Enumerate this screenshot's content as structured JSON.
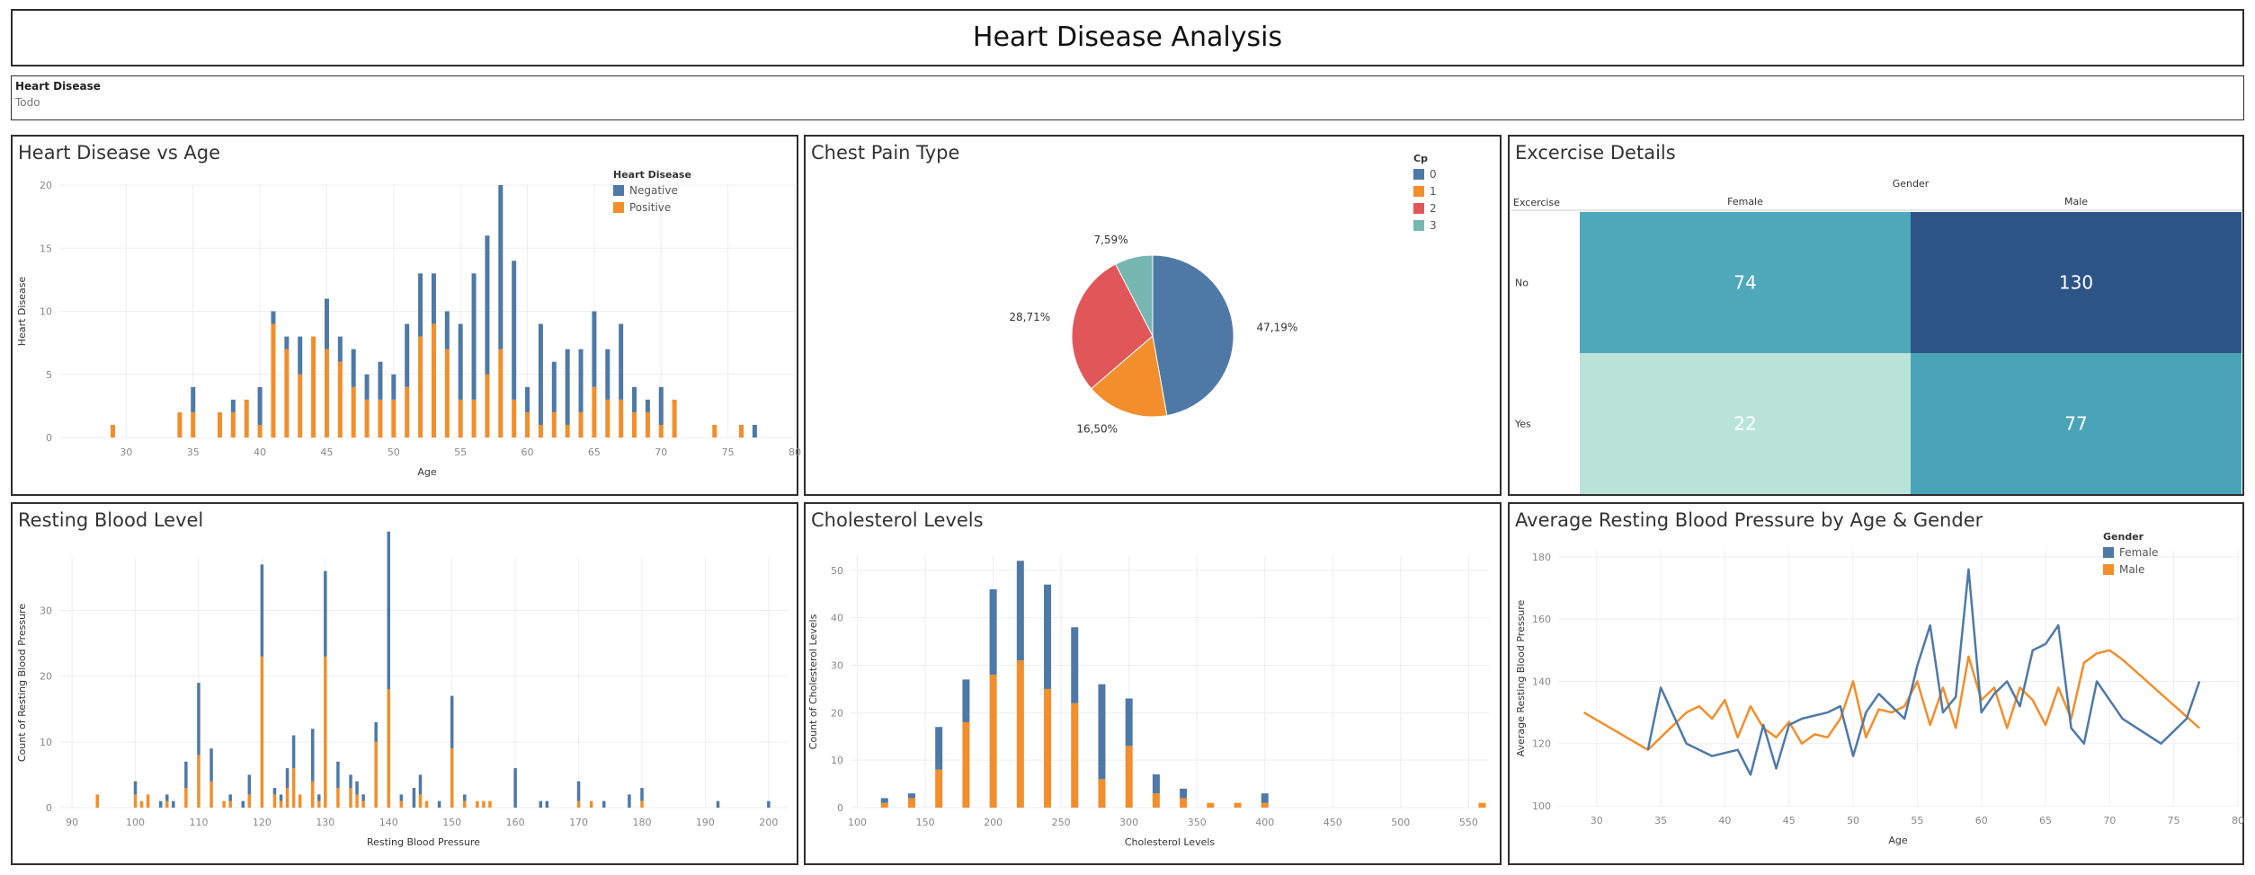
{
  "dashboard": {
    "title": "Heart Disease Analysis",
    "filter": {
      "label": "Heart Disease",
      "value": "Todo"
    }
  },
  "colors": {
    "negative": "#4e79a7",
    "positive": "#f28e2b",
    "cp2": "#e15759",
    "cp3": "#76b7b2",
    "grid": "#eeeeee",
    "axis": "#888888"
  },
  "chart_data": [
    {
      "id": "age",
      "type": "bar",
      "title": "Heart Disease vs Age",
      "xlabel": "Age",
      "ylabel": "Heart Disease",
      "xlim": [
        25,
        80
      ],
      "ylim": [
        0,
        20
      ],
      "xticks": [
        30,
        35,
        40,
        45,
        50,
        55,
        60,
        65,
        70,
        75,
        80
      ],
      "yticks": [
        0,
        5,
        10,
        15,
        20
      ],
      "legend": {
        "title": "Heart Disease",
        "position": "top-right",
        "items": [
          "Negative",
          "Positive"
        ]
      },
      "x": [
        29,
        34,
        35,
        37,
        38,
        39,
        40,
        41,
        42,
        43,
        44,
        45,
        46,
        47,
        48,
        49,
        50,
        51,
        52,
        53,
        54,
        55,
        56,
        57,
        58,
        59,
        60,
        61,
        62,
        63,
        64,
        65,
        66,
        67,
        68,
        69,
        70,
        71,
        74,
        76,
        77
      ],
      "series": [
        {
          "name": "Positive",
          "values": [
            1,
            2,
            2,
            2,
            2,
            3,
            1,
            9,
            7,
            5,
            8,
            7,
            6,
            4,
            3,
            3,
            3,
            4,
            8,
            9,
            7,
            3,
            3,
            5,
            7,
            3,
            2,
            1,
            2,
            1,
            2,
            4,
            3,
            3,
            2,
            2,
            1,
            3,
            1,
            1,
            0
          ]
        },
        {
          "name": "Negative",
          "values": [
            0,
            0,
            2,
            0,
            1,
            0,
            3,
            1,
            1,
            3,
            0,
            4,
            2,
            3,
            2,
            3,
            2,
            5,
            5,
            4,
            3,
            6,
            10,
            11,
            13,
            11,
            2,
            8,
            4,
            6,
            5,
            6,
            4,
            6,
            2,
            1,
            3,
            0,
            0,
            0,
            1
          ]
        }
      ]
    },
    {
      "id": "cp",
      "type": "pie",
      "title": "Chest Pain Type",
      "legend": {
        "title": "Cp",
        "position": "top-right",
        "items": [
          "0",
          "1",
          "2",
          "3"
        ]
      },
      "slices": [
        {
          "name": "0",
          "value": 47.19,
          "label": "47,19%"
        },
        {
          "name": "1",
          "value": 16.5,
          "label": "16,50%"
        },
        {
          "name": "2",
          "value": 28.71,
          "label": "28,71%"
        },
        {
          "name": "3",
          "value": 7.59,
          "label": "7,59%"
        }
      ]
    },
    {
      "id": "exercise",
      "type": "heatmap",
      "title": "Excercise Details",
      "column_header": "Gender",
      "row_header": "Excercise",
      "columns": [
        "Female",
        "Male"
      ],
      "rows": [
        "No",
        "Yes"
      ],
      "values": [
        [
          74,
          130
        ],
        [
          22,
          77
        ]
      ]
    },
    {
      "id": "bp",
      "type": "bar",
      "title": "Resting Blood Level",
      "xlabel": "Resting Blood Pressure",
      "ylabel": "Count of Resting Blood Pressure",
      "xlim": [
        88,
        203
      ],
      "ylim": [
        0,
        38
      ],
      "xticks": [
        90,
        100,
        110,
        120,
        130,
        140,
        150,
        160,
        170,
        180,
        190,
        200
      ],
      "yticks": [
        0,
        10,
        20,
        30
      ],
      "x": [
        94,
        100,
        101,
        102,
        104,
        105,
        106,
        108,
        110,
        112,
        114,
        115,
        117,
        118,
        120,
        122,
        123,
        124,
        125,
        126,
        128,
        129,
        130,
        132,
        134,
        135,
        136,
        138,
        140,
        142,
        144,
        145,
        146,
        148,
        150,
        152,
        154,
        155,
        156,
        160,
        164,
        165,
        170,
        172,
        174,
        178,
        180,
        192,
        200
      ],
      "series": [
        {
          "name": "Positive",
          "values": [
            2,
            2,
            1,
            2,
            0,
            1,
            0,
            3,
            8,
            4,
            1,
            1,
            0,
            2,
            23,
            2,
            1,
            3,
            6,
            2,
            4,
            1,
            23,
            3,
            3,
            2,
            1,
            10,
            18,
            1,
            0,
            2,
            1,
            0,
            9,
            1,
            1,
            1,
            1,
            0,
            0,
            0,
            1,
            1,
            0,
            0,
            1,
            0,
            0
          ]
        },
        {
          "name": "Negative",
          "values": [
            0,
            2,
            0,
            0,
            1,
            1,
            1,
            4,
            11,
            5,
            0,
            1,
            1,
            3,
            14,
            1,
            1,
            3,
            5,
            0,
            8,
            1,
            13,
            4,
            2,
            2,
            1,
            3,
            24,
            1,
            3,
            3,
            0,
            1,
            8,
            1,
            0,
            0,
            0,
            6,
            1,
            1,
            3,
            0,
            1,
            2,
            2,
            1,
            1
          ]
        }
      ]
    },
    {
      "id": "chol",
      "type": "bar",
      "title": "Cholesterol Levels",
      "xlabel": "Cholesterol Levels",
      "ylabel": "Count of Cholesterol Levels",
      "xlim": [
        95,
        565
      ],
      "ylim": [
        0,
        53
      ],
      "xticks": [
        100,
        150,
        200,
        250,
        300,
        350,
        400,
        450,
        500,
        550
      ],
      "yticks": [
        0,
        10,
        20,
        30,
        40,
        50
      ],
      "x": [
        120,
        140,
        160,
        180,
        200,
        220,
        240,
        260,
        280,
        300,
        320,
        340,
        360,
        380,
        400,
        560
      ],
      "series": [
        {
          "name": "Positive",
          "values": [
            1,
            2,
            8,
            18,
            28,
            31,
            25,
            22,
            6,
            13,
            3,
            2,
            1,
            1,
            1,
            1
          ]
        },
        {
          "name": "Negative",
          "values": [
            1,
            1,
            9,
            9,
            18,
            21,
            22,
            16,
            20,
            10,
            4,
            2,
            0,
            0,
            2,
            0
          ]
        }
      ]
    },
    {
      "id": "avgbp",
      "type": "line",
      "title": "Average Resting Blood Pressure by Age & Gender",
      "xlabel": "Age",
      "ylabel": "Average Resting Blood Pressure",
      "xlim": [
        27,
        80
      ],
      "ylim": [
        100,
        182
      ],
      "xticks": [
        30,
        35,
        40,
        45,
        50,
        55,
        60,
        65,
        70,
        75,
        80
      ],
      "yticks": [
        100,
        120,
        140,
        160,
        180
      ],
      "legend": {
        "title": "Gender",
        "position": "top-right",
        "items": [
          "Female",
          "Male"
        ]
      },
      "series": [
        {
          "name": "Female",
          "x": [
            34,
            35,
            37,
            39,
            41,
            42,
            43,
            44,
            45,
            46,
            48,
            49,
            50,
            51,
            52,
            53,
            54,
            55,
            56,
            57,
            58,
            59,
            60,
            61,
            62,
            63,
            64,
            65,
            66,
            67,
            68,
            69,
            71,
            74,
            76,
            77
          ],
          "y": [
            118,
            138,
            120,
            116,
            118,
            110,
            126,
            112,
            126,
            128,
            130,
            132,
            116,
            130,
            136,
            132,
            128,
            145,
            158,
            130,
            135,
            176,
            130,
            136,
            140,
            132,
            150,
            152,
            158,
            125,
            120,
            140,
            128,
            120,
            128,
            140
          ]
        },
        {
          "name": "Male",
          "x": [
            29,
            34,
            35,
            37,
            38,
            39,
            40,
            41,
            42,
            43,
            44,
            45,
            46,
            47,
            48,
            49,
            50,
            51,
            52,
            53,
            54,
            55,
            56,
            57,
            58,
            59,
            60,
            61,
            62,
            63,
            64,
            65,
            66,
            67,
            68,
            69,
            70,
            71,
            77
          ],
          "y": [
            130,
            118,
            122,
            130,
            132,
            128,
            134,
            122,
            132,
            125,
            122,
            127,
            120,
            123,
            122,
            128,
            140,
            122,
            131,
            130,
            132,
            140,
            126,
            138,
            125,
            148,
            134,
            138,
            125,
            138,
            134,
            126,
            138,
            128,
            146,
            149,
            150,
            147,
            125
          ]
        }
      ]
    }
  ]
}
